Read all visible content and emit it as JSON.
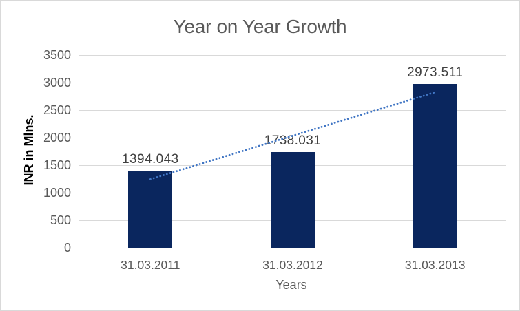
{
  "chart_data": {
    "type": "bar",
    "title": "Year on Year Growth",
    "categories": [
      "31.03.2011",
      "31.03.2012",
      "31.03.2013"
    ],
    "values": [
      1394.043,
      1738.031,
      2973.511
    ],
    "data_labels": [
      "1394.043",
      "1738.031",
      "2973.511"
    ],
    "xlabel": "Years",
    "ylabel": "INR in Mlns.",
    "ylim": [
      0,
      3500
    ],
    "ytick_step": 500,
    "yticks": [
      "0",
      "500",
      "1000",
      "1500",
      "2000",
      "2500",
      "3000",
      "3500"
    ],
    "grid": true,
    "legend": "none",
    "trendline": {
      "type": "linear",
      "style": "dotted"
    },
    "colors": {
      "bar": "#0A265E",
      "trendline": "#4176C4",
      "title_text": "#595959",
      "axis_text": "#595959",
      "data_label_text": "#404040",
      "gridline": "#D9D9D9",
      "axis_line": "#BFBFBF",
      "frame_border": "#D9D9D9",
      "background": "#FFFFFF"
    }
  }
}
